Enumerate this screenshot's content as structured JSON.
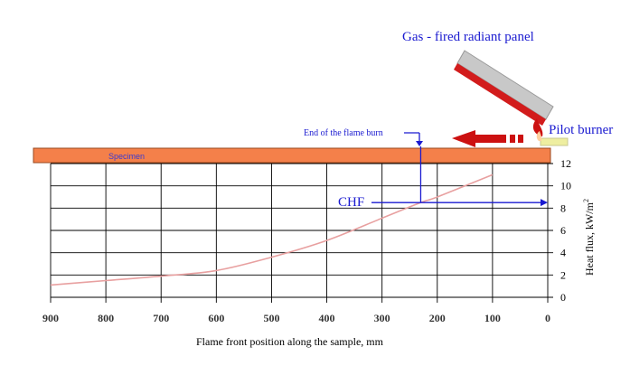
{
  "labels": {
    "panel": "Gas - fired radiant panel",
    "pilot": "Pilot burner",
    "flame_end": "End of the flame burn",
    "specimen": "Specimen",
    "chf": "CHF",
    "x_axis": "Flame front position along the sample,  mm",
    "y_axis_main": "Heat flux,  kW/m",
    "y_axis_sup": "2"
  },
  "colors": {
    "grid": "#000000",
    "curve": "#e8a0a0",
    "specimen_fill": "#f4804a",
    "panel_fill": "#c8c8c8",
    "panel_edge": "#d21c1c",
    "arrow_red": "#cc1111",
    "blue": "#1a1ad0",
    "pilot_tube": "#eeeea0"
  },
  "icons": {
    "panel": "radiant-panel-icon",
    "pilot": "pilot-burner-icon",
    "flame_arrow": "flame-direction-arrow-icon"
  },
  "chart_data": {
    "type": "line",
    "x_reversed": true,
    "xlim": [
      0,
      900
    ],
    "ylim": [
      0,
      12
    ],
    "x_ticks": [
      900,
      800,
      700,
      600,
      500,
      400,
      300,
      200,
      100,
      0
    ],
    "y_ticks": [
      0,
      2,
      4,
      6,
      8,
      10,
      12
    ],
    "grid": true,
    "series": [
      {
        "x": [
          900,
          800,
          700,
          600,
          500,
          400,
          300,
          230,
          200,
          100
        ],
        "y": [
          1.1,
          1.5,
          1.9,
          2.4,
          3.6,
          5.1,
          7.1,
          8.5,
          9.0,
          11.0
        ]
      }
    ],
    "chf_x": 230,
    "chf_y": 8.5
  }
}
